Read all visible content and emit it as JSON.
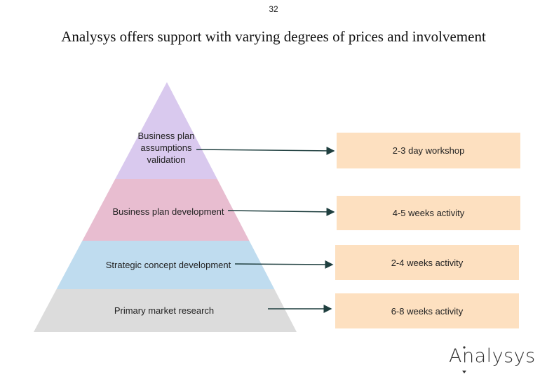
{
  "page_number": "32",
  "title": "Analysys offers support with varying degrees of prices and involvement",
  "levels": [
    {
      "label": "Business plan assumptions validation",
      "offering": "2-3 day workshop"
    },
    {
      "label": "Business plan development",
      "offering": "4-5 weeks activity"
    },
    {
      "label": "Strategic concept development",
      "offering": "2-4 weeks activity"
    },
    {
      "label": "Primary market research",
      "offering": "6-8 weeks activity"
    }
  ],
  "logo": "Analysys"
}
